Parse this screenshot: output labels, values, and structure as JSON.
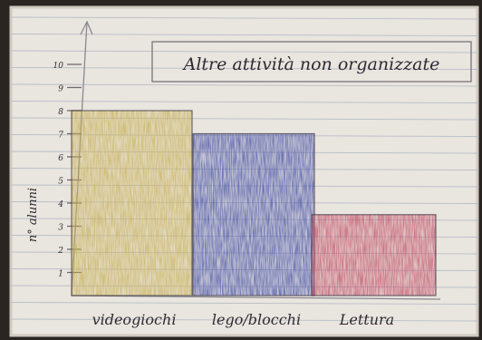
{
  "chart_data": {
    "type": "bar",
    "title": "Altre attività non organizzate",
    "xlabel": "",
    "ylabel": "n° alunni",
    "categories": [
      "videogiochi",
      "lego/blocchi",
      "Lettura"
    ],
    "values": [
      8,
      7,
      3.5
    ],
    "ylim": [
      0,
      10
    ],
    "yticks": [
      1,
      2,
      3,
      4,
      5,
      6,
      7,
      8,
      9,
      10
    ],
    "grid": false,
    "legend": "none",
    "colors": [
      "#c9b25a",
      "#4b56a8",
      "#c2546b"
    ]
  },
  "colors": {
    "paper": "#e9e5df",
    "line": "#b9bec6",
    "ink": "#2f2a33"
  }
}
